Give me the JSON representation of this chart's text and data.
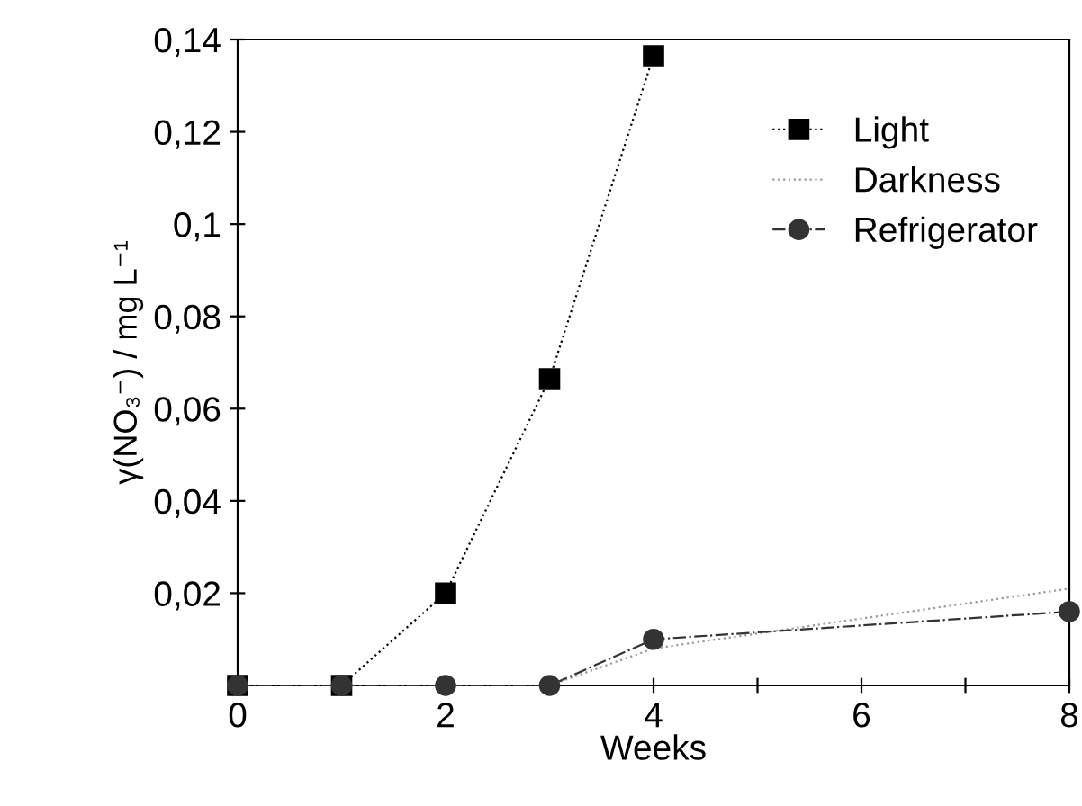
{
  "chart_data": {
    "type": "line",
    "xlabel": "Weeks",
    "ylabel": "γ(NO₃⁻) / mg L⁻¹",
    "xlim": [
      0,
      8
    ],
    "ylim": [
      0,
      0.14
    ],
    "xticks": [
      0,
      {
        "value": 1,
        "label": null
      },
      2,
      {
        "value": 3,
        "label": null
      },
      4,
      {
        "value": 5,
        "label": null
      },
      6,
      {
        "value": 7,
        "label": null
      },
      8
    ],
    "yticks": [
      {
        "value": 0,
        "label": null
      },
      {
        "value": 0.02,
        "label": "0,02"
      },
      {
        "value": 0.04,
        "label": "0,04"
      },
      {
        "value": 0.06,
        "label": "0,06"
      },
      {
        "value": 0.08,
        "label": "0,08"
      },
      {
        "value": 0.1,
        "label": "0,1"
      },
      {
        "value": 0.12,
        "label": "0,12"
      },
      {
        "value": 0.14,
        "label": "0,14"
      }
    ],
    "grid": false,
    "legend": "top right",
    "series": [
      {
        "name": "Light",
        "color": "#000000",
        "marker": "square",
        "line_style": "dotted",
        "x": [
          0,
          1,
          2,
          3,
          4
        ],
        "values": [
          0,
          0,
          0.02,
          0.0665,
          0.1365
        ]
      },
      {
        "name": "Darkness",
        "color": "#999999",
        "marker": "none",
        "line_style": "dotted",
        "x": [
          0,
          1,
          2,
          3,
          4,
          8
        ],
        "values": [
          0,
          0,
          0,
          0,
          0.008,
          0.021
        ]
      },
      {
        "name": "Refrigerator",
        "color": "#333333",
        "marker": "circle",
        "line_style": "dashdot",
        "x": [
          0,
          1,
          2,
          3,
          4,
          8
        ],
        "values": [
          0,
          0,
          0,
          0,
          0.01,
          0.016
        ]
      }
    ]
  }
}
